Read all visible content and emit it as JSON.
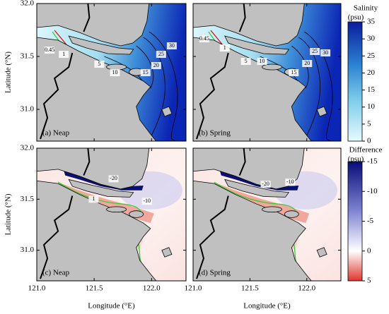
{
  "figure": {
    "xlabel": "Longitude (°E)",
    "ylabel": "Latitude (°N)",
    "xlim": [
      121.0,
      122.3
    ],
    "ylim": [
      30.7,
      32.0
    ],
    "xticks": [
      {
        "value": 121.0,
        "label": "121.0"
      },
      {
        "value": 121.5,
        "label": "121.5"
      },
      {
        "value": 122.0,
        "label": "122.0"
      }
    ],
    "yticks": [
      {
        "value": 31.0,
        "label": "31.0"
      },
      {
        "value": 31.5,
        "label": "31.5"
      },
      {
        "value": 32.0,
        "label": "32.0"
      }
    ],
    "panels": [
      {
        "label": "(a) Neap",
        "contour_labels": [
          0.45,
          1,
          5,
          10,
          15,
          20,
          25,
          30
        ]
      },
      {
        "label": "(b) Spring",
        "contour_labels": [
          0.45,
          1,
          5,
          10,
          15,
          20,
          25,
          30
        ]
      },
      {
        "label": "(c) Neap",
        "contour_labels": [
          -20,
          -10,
          1
        ]
      },
      {
        "label": "(d) Spring",
        "contour_labels": [
          -20,
          -10
        ]
      }
    ],
    "colorbars": [
      {
        "title": "Salinity",
        "unit": "(psu)",
        "range": [
          0,
          35
        ],
        "ticks": [
          0,
          5,
          10,
          15,
          20,
          25,
          30,
          35
        ]
      },
      {
        "title": "Difference",
        "unit": "(psu)",
        "range": [
          5,
          -15
        ],
        "ticks": [
          5,
          0,
          -5,
          -10,
          -15
        ]
      }
    ]
  }
}
